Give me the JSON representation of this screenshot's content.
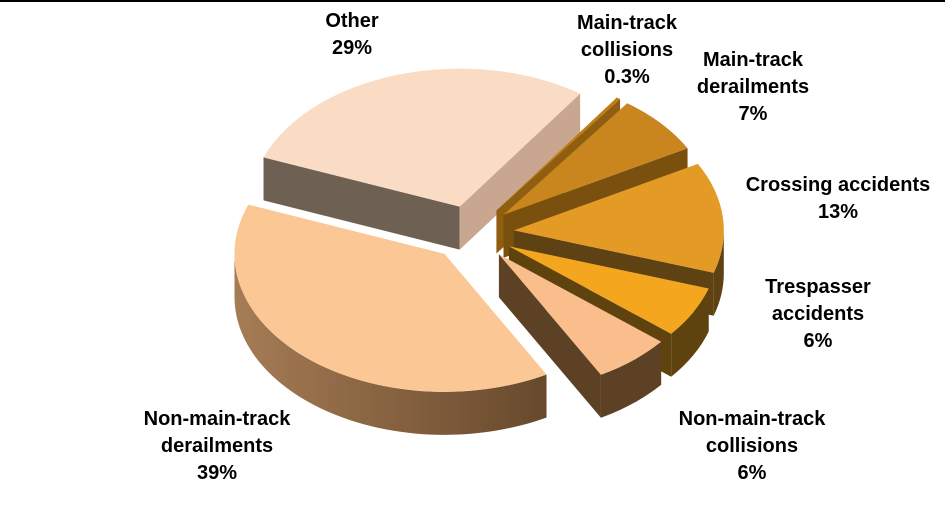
{
  "page": {
    "background_color": "#ffffff",
    "top_border_color": "#000000",
    "text_color": "#000000"
  },
  "chart_data": {
    "type": "pie",
    "style": "3d-exploded",
    "title": "",
    "unit": "%",
    "legend": "none",
    "labels_position": "outside",
    "start_offset_deg": 35,
    "slices": [
      {
        "label": "Main-track collisions",
        "value": 0.3,
        "pct_label": "0.3%",
        "top_color": "#C07C10",
        "side_color": "#8F5E10",
        "label_lines": [
          "Main-track",
          "collisions",
          "0.3%"
        ]
      },
      {
        "label": "Main-track derailments",
        "value": 7,
        "pct_label": "7%",
        "top_color": "#C9861E",
        "side_color": "#7A500E",
        "label_lines": [
          "Main-track",
          "derailments",
          "7%"
        ]
      },
      {
        "label": "Crossing accidents",
        "value": 13,
        "pct_label": "13%",
        "top_color": "#E49B26",
        "side_color": "#5E4214",
        "label_lines": [
          "Crossing accidents",
          "13%"
        ]
      },
      {
        "label": "Trespasser accidents",
        "value": 6,
        "pct_label": "6%",
        "top_color": "#F4A71E",
        "side_color": "#5F430F",
        "label_lines": [
          "Trespasser",
          "accidents",
          "6%"
        ]
      },
      {
        "label": "Non-main-track collisions",
        "value": 6,
        "pct_label": "6%",
        "top_color": "#F9BE8C",
        "side_color": "#5C4124",
        "label_lines": [
          "Non-main-track",
          "collisions",
          "6%"
        ]
      },
      {
        "label": "Non-main-track derailments",
        "value": 39,
        "pct_label": "39%",
        "top_color": "#FAC795",
        "side_color": "#7E5F3F",
        "side_gradient": [
          "#A57C55",
          "#5F4126"
        ],
        "label_lines": [
          "Non-main-track",
          "derailments",
          "39%"
        ]
      },
      {
        "label": "Other",
        "value": 29,
        "pct_label": "29%",
        "top_color": "#FADCC5",
        "side_color": "#6E6053",
        "end_side_color": "#C9A68F",
        "label_lines": [
          "Other",
          "29%"
        ]
      }
    ]
  }
}
